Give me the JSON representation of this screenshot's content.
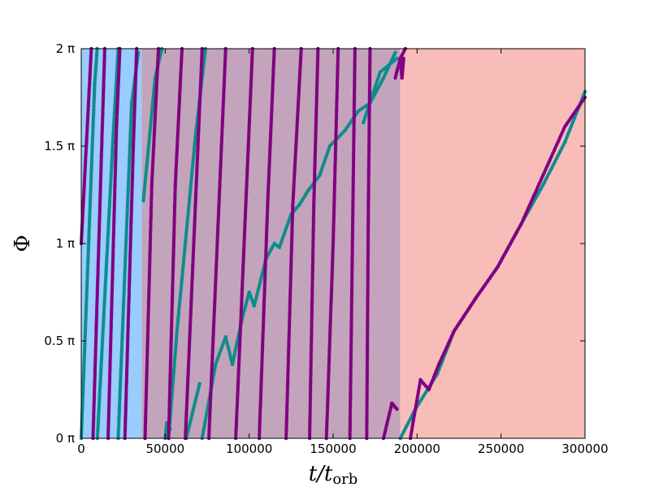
{
  "chart_data": {
    "type": "scatter",
    "title": "",
    "xlabel": "t/t",
    "xlabel_sub": "orb",
    "ylabel": "Φ",
    "xlim": [
      0,
      300000
    ],
    "ylim": [
      0,
      2
    ],
    "y_unit": "π",
    "grid": false,
    "legend": "none",
    "x_ticks": [
      {
        "value": 0,
        "label": "0"
      },
      {
        "value": 50000,
        "label": "50000"
      },
      {
        "value": 100000,
        "label": "100000"
      },
      {
        "value": 150000,
        "label": "150000"
      },
      {
        "value": 200000,
        "label": "200000"
      },
      {
        "value": 250000,
        "label": "250000"
      },
      {
        "value": 300000,
        "label": "300000"
      }
    ],
    "y_ticks": [
      {
        "value": 0,
        "label": "0 π"
      },
      {
        "value": 0.5,
        "label": "0.5 π"
      },
      {
        "value": 1,
        "label": "1 π"
      },
      {
        "value": 1.5,
        "label": "1.5 π"
      },
      {
        "value": 2,
        "label": "2 π"
      }
    ],
    "regions": [
      {
        "x_start": 0,
        "x_end": 36000,
        "color": "#99ccff"
      },
      {
        "x_start": 36000,
        "x_end": 190000,
        "color": "#c4a4bc"
      },
      {
        "x_start": 190000,
        "x_end": 300000,
        "color": "#f9bdb9"
      }
    ],
    "series": [
      {
        "color": "#0e8c8c",
        "segments": [
          [
            [
              0,
              0
            ],
            [
              8000,
              1.82
            ],
            [
              9500,
              2.0
            ]
          ],
          [
            [
              9600,
              0
            ],
            [
              19000,
              1.55
            ],
            [
              22000,
              2.0
            ]
          ],
          [
            [
              22000,
              0
            ],
            [
              30000,
              1.72
            ],
            [
              34000,
              1.98
            ]
          ],
          [
            [
              37000,
              1.22
            ],
            [
              44000,
              1.85
            ],
            [
              48000,
              2.0
            ]
          ],
          [
            [
              50000,
              0
            ],
            [
              51000,
              0.08
            ],
            [
              53000,
              0.05
            ]
          ],
          [
            [
              52000,
              0
            ],
            [
              57000,
              0.55
            ],
            [
              60000,
              0.82
            ],
            [
              68000,
              1.55
            ],
            [
              74000,
              2.0
            ]
          ],
          [
            [
              62500,
              0
            ],
            [
              70500,
              0.28
            ]
          ],
          [
            [
              72000,
              0
            ],
            [
              80000,
              0.38
            ],
            [
              86000,
              0.52
            ],
            [
              90000,
              0.38
            ],
            [
              96000,
              0.62
            ],
            [
              100000,
              0.75
            ],
            [
              103000,
              0.68
            ],
            [
              110000,
              0.92
            ],
            [
              115000,
              1.0
            ],
            [
              118000,
              0.98
            ],
            [
              125000,
              1.15
            ],
            [
              130000,
              1.2
            ],
            [
              135000,
              1.27
            ],
            [
              142000,
              1.35
            ],
            [
              148000,
              1.5
            ],
            [
              157000,
              1.58
            ],
            [
              165000,
              1.68
            ],
            [
              172000,
              1.72
            ],
            [
              180000,
              1.85
            ],
            [
              187000,
              1.98
            ]
          ],
          [
            [
              168000,
              1.62
            ],
            [
              178000,
              1.88
            ],
            [
              188000,
              1.95
            ]
          ],
          [
            [
              190000,
              0
            ],
            [
              199000,
              0.15
            ],
            [
              212000,
              0.33
            ],
            [
              222000,
              0.55
            ],
            [
              235000,
              0.72
            ],
            [
              248000,
              0.88
            ],
            [
              262000,
              1.1
            ],
            [
              275000,
              1.3
            ],
            [
              288000,
              1.52
            ],
            [
              300000,
              1.78
            ]
          ]
        ]
      },
      {
        "color": "#800080",
        "segments": [
          [
            [
              0,
              1.0
            ],
            [
              3000,
              1.5
            ],
            [
              6000,
              2.0
            ]
          ],
          [
            [
              7000,
              0
            ],
            [
              12000,
              1.45
            ],
            [
              14000,
              2.0
            ]
          ],
          [
            [
              16000,
              0
            ],
            [
              21000,
              1.6
            ],
            [
              23000,
              2.0
            ]
          ],
          [
            [
              26000,
              0
            ],
            [
              31000,
              1.5
            ],
            [
              33000,
              2.0
            ]
          ],
          [
            [
              38000,
              0
            ],
            [
              42000,
              1.3
            ],
            [
              46000,
              2.0
            ]
          ],
          [
            [
              52000,
              0
            ],
            [
              56000,
              1.3
            ],
            [
              60000,
              2.0
            ]
          ],
          [
            [
              62000,
              0
            ],
            [
              68000,
              1.2
            ],
            [
              72000,
              2.0
            ]
          ],
          [
            [
              76000,
              0
            ],
            [
              82000,
              1.2
            ],
            [
              86000,
              2.0
            ]
          ],
          [
            [
              92000,
              0
            ],
            [
              98000,
              1.2
            ],
            [
              102000,
              2.0
            ]
          ],
          [
            [
              106000,
              0
            ],
            [
              111000,
              1.2
            ],
            [
              115000,
              2.0
            ]
          ],
          [
            [
              122000,
              0
            ],
            [
              126000,
              1.2
            ],
            [
              131000,
              2.0
            ]
          ],
          [
            [
              136000,
              0
            ],
            [
              138500,
              1.2
            ],
            [
              141000,
              2.0
            ]
          ],
          [
            [
              146000,
              0
            ],
            [
              150000,
              1.0
            ],
            [
              153000,
              2.0
            ]
          ],
          [
            [
              160000,
              0
            ],
            [
              161500,
              1.0
            ],
            [
              163000,
              2.0
            ]
          ],
          [
            [
              170000,
              0
            ],
            [
              171000,
              1.2
            ],
            [
              172000,
              2.0
            ]
          ],
          [
            [
              180000,
              0.0
            ],
            [
              185000,
              0.18
            ],
            [
              188000,
              0.15
            ]
          ],
          [
            [
              187000,
              1.85
            ],
            [
              190000,
              1.95
            ],
            [
              193000,
              2.0
            ]
          ],
          [
            [
              190000,
              1.95
            ],
            [
              191000,
              1.85
            ],
            [
              192000,
              1.95
            ]
          ],
          [
            [
              196000,
              0
            ],
            [
              202000,
              0.3
            ],
            [
              207000,
              0.25
            ],
            [
              213000,
              0.38
            ],
            [
              222000,
              0.55
            ],
            [
              235000,
              0.72
            ],
            [
              248000,
              0.88
            ],
            [
              262000,
              1.1
            ],
            [
              275000,
              1.35
            ],
            [
              288000,
              1.6
            ],
            [
              300000,
              1.75
            ]
          ]
        ]
      }
    ]
  }
}
